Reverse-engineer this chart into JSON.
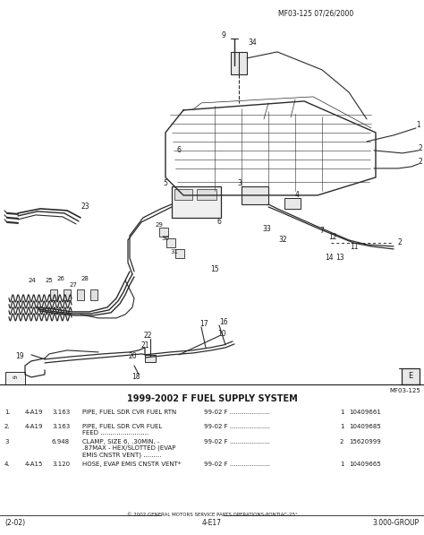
{
  "title": "1999-2002 F FUEL SUPPLY SYSTEM",
  "header_ref": "MF03-125 07/26/2000",
  "ref_bottom": "MF03-125",
  "footer_left": "(2-02)",
  "footer_center": "4-E17",
  "footer_right": "3.000-GROUP",
  "copyright": "© 2002 GENERAL MOTORS SERVICE PARTS OPERATIONS-PONTIAC-25°",
  "diagram_bg": "#ffffff",
  "table_bg": "#d8d0c0",
  "text_color": "#1a1a1a",
  "line_color": "#2a2a2a",
  "table_rows": [
    [
      "1.",
      "4-A19",
      "3.163",
      "PIPE, FUEL SDR CVR FUEL RTN",
      "99-02 F",
      "1",
      "10409661"
    ],
    [
      "2.",
      "4-A19",
      "3.163",
      "PIPE, FUEL SDR CVR FUEL\nFEED ........................",
      "99-02 F",
      "1",
      "10409685"
    ],
    [
      "3",
      "",
      "6.948",
      "CLAMP, SIZE 6, .30MIN. -\n.87MAX - HEX/SLOTTED (EVAP\nEMIS CNSTR VENT) .........",
      "99-02 F",
      "2",
      "15620999"
    ],
    [
      "4.",
      "4-A15",
      "3.120",
      "HOSE, EVAP EMIS CNSTR VENT*",
      "99-02 F",
      "1",
      "10409665"
    ]
  ]
}
